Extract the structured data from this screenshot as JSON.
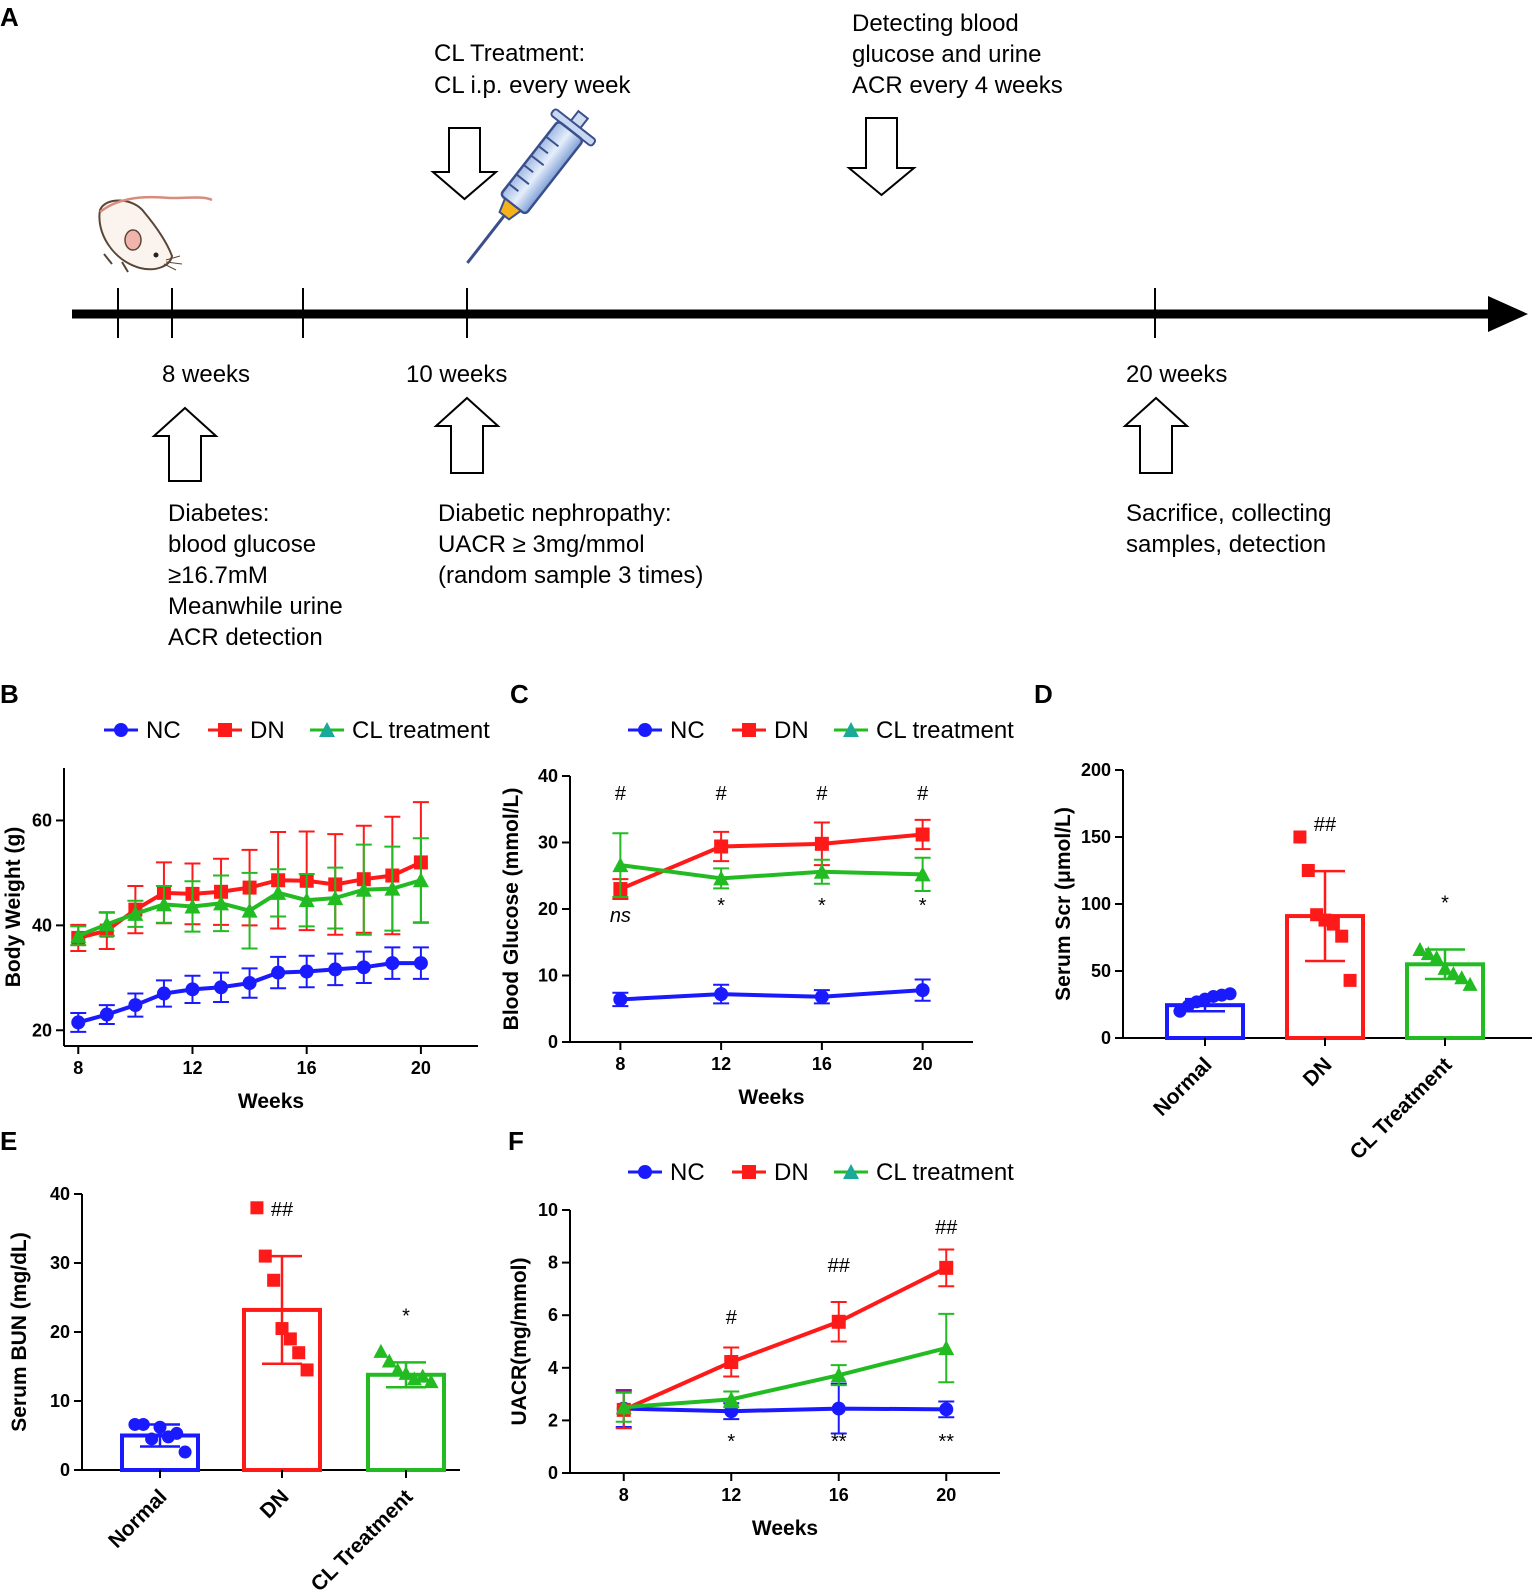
{
  "colors": {
    "nc": "#1a1aff",
    "dn": "#ff1a1a",
    "cl": "#22bb22"
  },
  "panel_a": {
    "label": "A",
    "cl_treatment": [
      "CL Treatment:",
      "CL i.p. every week"
    ],
    "detecting": [
      "Detecting blood",
      "glucose and urine",
      "ACR every 4 weeks"
    ],
    "week8": "8 weeks",
    "week10": "10 weeks",
    "week20": "20 weeks",
    "diabetes": [
      "Diabetes:",
      "blood glucose",
      "≥16.7mM",
      "Meanwhile urine",
      "ACR detection"
    ],
    "nephropathy": [
      "Diabetic nephropathy:",
      "UACR ≥ 3mg/mmol",
      "(random sample 3 times)"
    ],
    "sacrifice": [
      "Sacrifice, collecting",
      "samples, detection"
    ]
  },
  "chart_data": [
    {
      "panel": "B",
      "type": "line",
      "title": "",
      "xlabel": "Weeks",
      "ylabel": "Body Weight  (g)",
      "xlim": [
        7.5,
        22
      ],
      "ylim": [
        17,
        70
      ],
      "xticks": [
        8,
        12,
        16,
        20
      ],
      "yticks": [
        20,
        40,
        60
      ],
      "legend": [
        "NC",
        "DN",
        "CL treatment"
      ],
      "x": [
        8,
        9,
        10,
        11,
        12,
        13,
        14,
        15,
        16,
        17,
        18,
        19,
        20
      ],
      "series": [
        {
          "name": "NC",
          "values": [
            21.5,
            23,
            24.8,
            27,
            27.8,
            28.2,
            29,
            31,
            31.2,
            31.6,
            32,
            32.8,
            32.8
          ],
          "err": [
            1.8,
            1.8,
            2.2,
            2.5,
            2.6,
            2.8,
            2.8,
            3,
            3,
            3,
            3,
            3,
            3
          ]
        },
        {
          "name": "DN",
          "values": [
            37.6,
            39,
            43,
            46.2,
            46,
            46.4,
            47.2,
            48.6,
            48.5,
            47.8,
            48.8,
            49.5,
            52
          ],
          "err": [
            2.5,
            3.5,
            4.5,
            5.8,
            5.8,
            6.3,
            7.2,
            9.2,
            9.4,
            9.6,
            10.2,
            11.2,
            11.5
          ]
        },
        {
          "name": "CL treatment",
          "values": [
            38,
            40.2,
            42.2,
            44,
            43.6,
            44.2,
            42.8,
            46.2,
            44.8,
            45.2,
            46.8,
            47,
            48.6
          ],
          "err": [
            1.8,
            2.2,
            2.5,
            3.5,
            4.8,
            5.3,
            7.2,
            4.5,
            5,
            5.8,
            8.6,
            8,
            8
          ]
        }
      ]
    },
    {
      "panel": "C",
      "type": "line",
      "title": "",
      "xlabel": "Weeks",
      "ylabel": "Blood Glucose (mmol/L)",
      "xlim": [
        6,
        22
      ],
      "ylim": [
        0,
        40
      ],
      "xticks": [
        8,
        12,
        16,
        20
      ],
      "yticks": [
        0,
        10,
        20,
        30,
        40
      ],
      "legend": [
        "NC",
        "DN",
        "CL treatment"
      ],
      "x": [
        8,
        12,
        16,
        20
      ],
      "series": [
        {
          "name": "NC",
          "values": [
            6.4,
            7.2,
            6.8,
            7.8
          ],
          "err": [
            1,
            1.4,
            1,
            1.6
          ]
        },
        {
          "name": "DN",
          "values": [
            23,
            29.4,
            29.8,
            31.2
          ],
          "err": [
            1.5,
            2.2,
            3.2,
            2.2
          ]
        },
        {
          "name": "CL treatment",
          "values": [
            26.6,
            24.6,
            25.6,
            25.2
          ],
          "err": [
            4.8,
            1.5,
            1.8,
            2.5
          ]
        }
      ],
      "annotations": {
        "top": [
          "#",
          "#",
          "#",
          "#"
        ],
        "bottom": [
          "ns",
          "*",
          "*",
          "*"
        ]
      }
    },
    {
      "panel": "D",
      "type": "bar",
      "title": "",
      "xlabel": "",
      "ylabel": "Serum Scr (μmol/L)",
      "ylim": [
        0,
        200
      ],
      "yticks": [
        0,
        50,
        100,
        150,
        200
      ],
      "categories": [
        "Normal",
        "DN",
        "CL Treatment"
      ],
      "values": [
        24.5,
        91,
        55
      ],
      "err": [
        4.5,
        33.5,
        11
      ],
      "points": [
        [
          20,
          24,
          27,
          29,
          31,
          32,
          33
        ],
        [
          150,
          125,
          92,
          88,
          85,
          76,
          43
        ],
        [
          66,
          63,
          60,
          52,
          48,
          45,
          40
        ]
      ],
      "annotations": [
        "",
        "##",
        "*"
      ]
    },
    {
      "panel": "E",
      "type": "bar",
      "title": "",
      "xlabel": "",
      "ylabel": "Serum BUN (mg/dL)",
      "ylim": [
        0,
        40
      ],
      "yticks": [
        0,
        10,
        20,
        30,
        40
      ],
      "categories": [
        "Normal",
        "DN",
        "CL Treatment"
      ],
      "values": [
        5,
        23.2,
        13.8
      ],
      "err": [
        1.6,
        7.8,
        1.8
      ],
      "points": [
        [
          6.6,
          6.6,
          4.5,
          6.2,
          4.8,
          5.3,
          2.6
        ],
        [
          38,
          31,
          27.5,
          20.5,
          19,
          17,
          14.5
        ],
        [
          17.2,
          15.8,
          14.5,
          14,
          13.2,
          13.6,
          12.8
        ]
      ],
      "annotations": [
        "",
        "##",
        "*"
      ]
    },
    {
      "panel": "F",
      "type": "line",
      "title": "",
      "xlabel": "Weeks",
      "ylabel": "UACR(mg/mmol)",
      "xlim": [
        6,
        22
      ],
      "ylim": [
        0,
        10
      ],
      "xticks": [
        8,
        12,
        16,
        20
      ],
      "yticks": [
        0,
        2,
        4,
        6,
        8,
        10
      ],
      "legend": [
        "NC",
        "DN",
        "CL treatment"
      ],
      "x": [
        8,
        12,
        16,
        20
      ],
      "series": [
        {
          "name": "NC",
          "values": [
            2.45,
            2.35,
            2.45,
            2.42
          ],
          "err": [
            0.7,
            0.3,
            0.95,
            0.3
          ]
        },
        {
          "name": "DN",
          "values": [
            2.4,
            4.22,
            5.75,
            7.8
          ],
          "err": [
            0.7,
            0.55,
            0.75,
            0.7
          ]
        },
        {
          "name": "CL treatment",
          "values": [
            2.5,
            2.8,
            3.72,
            4.75
          ],
          "err": [
            0.55,
            0.3,
            0.38,
            1.3
          ]
        }
      ],
      "annotations": {
        "top": [
          "",
          "#",
          "##",
          "##"
        ],
        "bottom": [
          "",
          "*",
          "**",
          "**"
        ]
      }
    }
  ]
}
